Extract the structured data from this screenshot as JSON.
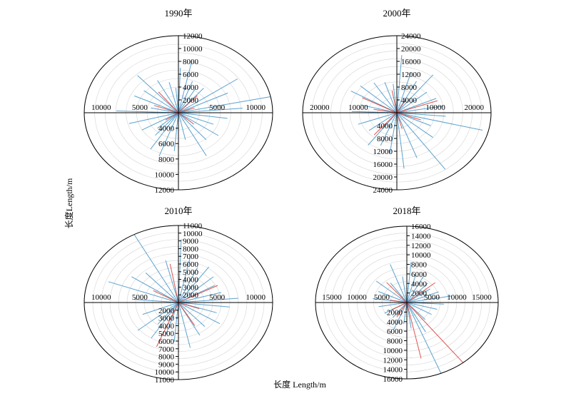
{
  "axis_labels": {
    "x": "长度 Length/m",
    "y": "长度Length/m"
  },
  "colors": {
    "blue_series": "#4a98c9",
    "red_series": "#d6453d",
    "grid_ring": "#d4d4d4",
    "axis": "#000000"
  },
  "chart_data": [
    {
      "type": "scatter",
      "subtype": "rose-of-segments",
      "title": "1990年",
      "ylim": [
        0,
        12000
      ],
      "x_ticks": [
        "10000",
        "5000",
        "5000",
        "10000"
      ],
      "y_ticks_up": [
        "2000",
        "4000",
        "6000",
        "8000",
        "10000",
        "12000"
      ],
      "y_ticks_down": [
        "4000",
        "6000",
        "8000",
        "10000",
        "12000"
      ],
      "rings": 9,
      "rays": [
        {
          "a": 88,
          "r": 7000,
          "c": "blue"
        },
        {
          "a": 78,
          "r": 8300,
          "c": "blue"
        },
        {
          "a": 70,
          "r": 5200,
          "c": "blue"
        },
        {
          "a": 60,
          "r": 4300,
          "c": "blue"
        },
        {
          "a": 50,
          "r": 5000,
          "c": "blue"
        },
        {
          "a": 35,
          "r": 9200,
          "c": "blue"
        },
        {
          "a": 26,
          "r": 7000,
          "c": "blue"
        },
        {
          "a": 12,
          "r": 12000,
          "c": "blue"
        },
        {
          "a": 5,
          "r": 8200,
          "c": "blue"
        },
        {
          "a": -8,
          "r": 6300,
          "c": "blue"
        },
        {
          "a": -22,
          "r": 4800,
          "c": "blue"
        },
        {
          "a": -35,
          "r": 6200,
          "c": "blue"
        },
        {
          "a": -50,
          "r": 5500,
          "c": "blue"
        },
        {
          "a": -62,
          "r": 7600,
          "c": "blue"
        },
        {
          "a": -78,
          "r": 4300,
          "c": "blue"
        },
        {
          "a": -95,
          "r": 6000,
          "c": "blue"
        },
        {
          "a": -110,
          "r": 7200,
          "c": "blue"
        },
        {
          "a": -122,
          "r": 6700,
          "c": "blue"
        },
        {
          "a": -138,
          "r": 3600,
          "c": "blue"
        },
        {
          "a": -150,
          "r": 5400,
          "c": "blue"
        },
        {
          "a": -165,
          "r": 6500,
          "c": "blue"
        },
        {
          "a": 178,
          "r": 7900,
          "c": "blue"
        },
        {
          "a": 168,
          "r": 3600,
          "c": "blue"
        },
        {
          "a": 155,
          "r": 6200,
          "c": "blue"
        },
        {
          "a": 142,
          "r": 5600,
          "c": "blue"
        },
        {
          "a": 132,
          "r": 7800,
          "c": "blue"
        },
        {
          "a": 118,
          "r": 5700,
          "c": "blue"
        },
        {
          "a": 104,
          "r": 4900,
          "c": "blue"
        },
        {
          "a": 95,
          "r": 3900,
          "c": "blue"
        },
        {
          "a": -130,
          "r": 4600,
          "c": "blue"
        },
        {
          "a": 48,
          "r": 3600,
          "c": "red"
        },
        {
          "a": 160,
          "r": 3300,
          "c": "red"
        },
        {
          "a": 128,
          "r": 4100,
          "c": "red"
        },
        {
          "a": -42,
          "r": 2600,
          "c": "red"
        },
        {
          "a": 20,
          "r": 2200,
          "c": "red"
        },
        {
          "a": -145,
          "r": 2000,
          "c": "red"
        }
      ]
    },
    {
      "type": "scatter",
      "subtype": "rose-of-segments",
      "title": "2000年",
      "ylim": [
        0,
        24000
      ],
      "x_ticks": [
        "20000",
        "10000",
        "10000",
        "20000"
      ],
      "y_ticks_up": [
        "4000",
        "8000",
        "12000",
        "16000",
        "20000",
        "24000"
      ],
      "y_ticks_down": [
        "4000",
        "8000",
        "12000",
        "16000",
        "20000",
        "24000"
      ],
      "rings": 10,
      "rays": [
        {
          "a": 86,
          "r": 18000,
          "c": "blue"
        },
        {
          "a": 74,
          "r": 13000,
          "c": "blue"
        },
        {
          "a": 63,
          "r": 11000,
          "c": "blue"
        },
        {
          "a": 52,
          "r": 15000,
          "c": "blue"
        },
        {
          "a": 40,
          "r": 10000,
          "c": "blue"
        },
        {
          "a": 24,
          "r": 11000,
          "c": "blue"
        },
        {
          "a": 10,
          "r": 12000,
          "c": "blue"
        },
        {
          "a": -5,
          "r": 12500,
          "c": "blue"
        },
        {
          "a": -14,
          "r": 22500,
          "c": "blue"
        },
        {
          "a": -25,
          "r": 9500,
          "c": "blue"
        },
        {
          "a": -40,
          "r": 12000,
          "c": "blue"
        },
        {
          "a": -55,
          "r": 21500,
          "c": "blue"
        },
        {
          "a": -70,
          "r": 15000,
          "c": "blue"
        },
        {
          "a": -84,
          "r": 17500,
          "c": "blue"
        },
        {
          "a": -98,
          "r": 13000,
          "c": "blue"
        },
        {
          "a": -112,
          "r": 11000,
          "c": "blue"
        },
        {
          "a": -126,
          "r": 12500,
          "c": "blue"
        },
        {
          "a": -142,
          "r": 9000,
          "c": "blue"
        },
        {
          "a": -160,
          "r": 10500,
          "c": "blue"
        },
        {
          "a": 178,
          "r": 11500,
          "c": "blue"
        },
        {
          "a": 165,
          "r": 9500,
          "c": "blue"
        },
        {
          "a": 150,
          "r": 13500,
          "c": "blue"
        },
        {
          "a": 138,
          "r": 12500,
          "c": "blue"
        },
        {
          "a": 122,
          "r": 11000,
          "c": "blue"
        },
        {
          "a": 108,
          "r": 10000,
          "c": "blue"
        },
        {
          "a": 96,
          "r": 9000,
          "c": "blue"
        },
        {
          "a": 20,
          "r": 11000,
          "c": "red"
        },
        {
          "a": 152,
          "r": 10000,
          "c": "red"
        },
        {
          "a": -130,
          "r": 9000,
          "c": "red"
        },
        {
          "a": -20,
          "r": 6500,
          "c": "red"
        },
        {
          "a": 100,
          "r": 7000,
          "c": "red"
        },
        {
          "a": -75,
          "r": 5200,
          "c": "red"
        },
        {
          "a": 170,
          "r": 6000,
          "c": "red"
        },
        {
          "a": 60,
          "r": 4500,
          "c": "red"
        }
      ]
    },
    {
      "type": "scatter",
      "subtype": "rose-of-segments",
      "title": "2010年",
      "ylim": [
        0,
        11000
      ],
      "x_ticks": [
        "10000",
        "5000",
        "5000",
        "10000"
      ],
      "y_ticks_up": [
        "2000",
        "3000",
        "4000",
        "5000",
        "6000",
        "7000",
        "8000",
        "9000",
        "10000",
        "11000"
      ],
      "y_ticks_down": [
        "2000",
        "3000",
        "4000",
        "5000",
        "6000",
        "7000",
        "8000",
        "9000",
        "10000",
        "11000"
      ],
      "rings": 11,
      "rays": [
        {
          "a": 88,
          "r": 9000,
          "c": "blue"
        },
        {
          "a": 78,
          "r": 6500,
          "c": "blue"
        },
        {
          "a": 66,
          "r": 5500,
          "c": "blue"
        },
        {
          "a": 55,
          "r": 6200,
          "c": "blue"
        },
        {
          "a": 42,
          "r": 5500,
          "c": "blue"
        },
        {
          "a": 30,
          "r": 4900,
          "c": "blue"
        },
        {
          "a": 16,
          "r": 5200,
          "c": "blue"
        },
        {
          "a": 5,
          "r": 7000,
          "c": "blue"
        },
        {
          "a": -6,
          "r": 6000,
          "c": "blue"
        },
        {
          "a": -18,
          "r": 4700,
          "c": "blue"
        },
        {
          "a": -32,
          "r": 5700,
          "c": "blue"
        },
        {
          "a": -48,
          "r": 4600,
          "c": "blue"
        },
        {
          "a": -62,
          "r": 5300,
          "c": "blue"
        },
        {
          "a": -78,
          "r": 6600,
          "c": "blue"
        },
        {
          "a": -95,
          "r": 5600,
          "c": "blue"
        },
        {
          "a": -108,
          "r": 5100,
          "c": "blue"
        },
        {
          "a": -122,
          "r": 6000,
          "c": "blue"
        },
        {
          "a": -140,
          "r": 6200,
          "c": "blue"
        },
        {
          "a": -158,
          "r": 4500,
          "c": "blue"
        },
        {
          "a": 175,
          "r": 5200,
          "c": "blue"
        },
        {
          "a": 160,
          "r": 8700,
          "c": "blue"
        },
        {
          "a": 146,
          "r": 6600,
          "c": "blue"
        },
        {
          "a": 132,
          "r": 5700,
          "c": "blue"
        },
        {
          "a": 118,
          "r": 11000,
          "c": "blue"
        },
        {
          "a": 104,
          "r": 6200,
          "c": "blue"
        },
        {
          "a": -128,
          "r": 3900,
          "c": "blue"
        },
        {
          "a": -112,
          "r": 6800,
          "c": "red"
        },
        {
          "a": 28,
          "r": 5200,
          "c": "red"
        },
        {
          "a": 100,
          "r": 5600,
          "c": "red"
        },
        {
          "a": -60,
          "r": 3800,
          "c": "red"
        },
        {
          "a": 150,
          "r": 3400,
          "c": "red"
        },
        {
          "a": -20,
          "r": 2600,
          "c": "red"
        }
      ]
    },
    {
      "type": "scatter",
      "subtype": "rose-of-segments",
      "title": "2018年",
      "ylim": [
        0,
        16000
      ],
      "x_ticks": [
        "15000",
        "10000",
        "5000",
        "5000",
        "10000",
        "15000"
      ],
      "y_ticks_up": [
        "2000",
        "4000",
        "6000",
        "8000",
        "10000",
        "12000",
        "14000",
        "16000"
      ],
      "y_ticks_down": [
        "2000",
        "4000",
        "6000",
        "8000",
        "10000",
        "12000",
        "14000",
        "16000"
      ],
      "rings": 11,
      "rays": [
        {
          "a": 85,
          "r": 8500,
          "c": "blue"
        },
        {
          "a": 75,
          "r": 6000,
          "c": "blue"
        },
        {
          "a": 62,
          "r": 6500,
          "c": "blue"
        },
        {
          "a": 48,
          "r": 5500,
          "c": "blue"
        },
        {
          "a": 35,
          "r": 5000,
          "c": "blue"
        },
        {
          "a": 22,
          "r": 6000,
          "c": "blue"
        },
        {
          "a": 10,
          "r": 8000,
          "c": "blue"
        },
        {
          "a": -3,
          "r": 6500,
          "c": "blue"
        },
        {
          "a": -15,
          "r": 5500,
          "c": "blue"
        },
        {
          "a": -30,
          "r": 5000,
          "c": "blue"
        },
        {
          "a": -48,
          "r": 4800,
          "c": "blue"
        },
        {
          "a": -62,
          "r": 7000,
          "c": "blue"
        },
        {
          "a": -68,
          "r": 16000,
          "c": "blue"
        },
        {
          "a": -82,
          "r": 5500,
          "c": "blue"
        },
        {
          "a": -97,
          "r": 4500,
          "c": "blue"
        },
        {
          "a": -112,
          "r": 6000,
          "c": "blue"
        },
        {
          "a": -128,
          "r": 4000,
          "c": "blue"
        },
        {
          "a": -150,
          "r": 4500,
          "c": "blue"
        },
        {
          "a": -170,
          "r": 5000,
          "c": "blue"
        },
        {
          "a": 172,
          "r": 6000,
          "c": "blue"
        },
        {
          "a": 155,
          "r": 5500,
          "c": "blue"
        },
        {
          "a": 140,
          "r": 7000,
          "c": "blue"
        },
        {
          "a": 125,
          "r": 5000,
          "c": "blue"
        },
        {
          "a": 110,
          "r": 8500,
          "c": "blue"
        },
        {
          "a": 98,
          "r": 5500,
          "c": "blue"
        },
        {
          "a": -52,
          "r": 16000,
          "c": "red"
        },
        {
          "a": -78,
          "r": 12000,
          "c": "red"
        },
        {
          "a": 130,
          "r": 5500,
          "c": "red"
        },
        {
          "a": 40,
          "r": 6500,
          "c": "red"
        },
        {
          "a": -120,
          "r": 3500,
          "c": "red"
        },
        {
          "a": -150,
          "r": 3000,
          "c": "red"
        },
        {
          "a": 170,
          "r": 3000,
          "c": "red"
        }
      ]
    }
  ]
}
